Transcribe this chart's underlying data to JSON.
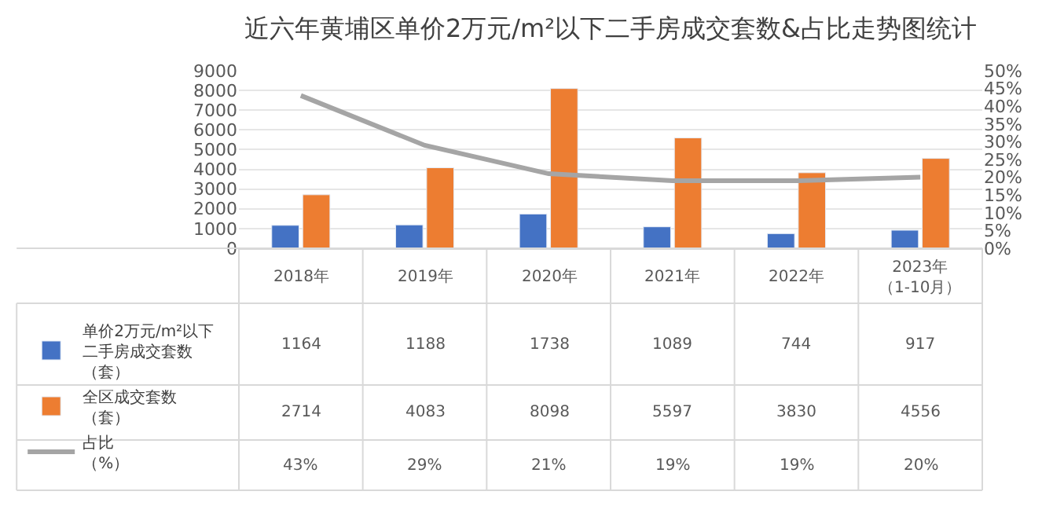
{
  "chart_data": {
    "type": "bar",
    "title": "近六年黄埔区单价2万元/m²以下二手房成交套数&占比走势图统计",
    "categories": [
      "2018年",
      "2019年",
      "2020年",
      "2021年",
      "2022年",
      "2023年（1-10月）"
    ],
    "series": [
      {
        "name": "单价2万元/m²以下二手房成交套数（套）",
        "color": "#4472c4",
        "values": [
          1164,
          1188,
          1738,
          1089,
          744,
          917
        ]
      },
      {
        "name": "全区成交套数（套）",
        "color": "#ed7d31",
        "values": [
          2714,
          4083,
          8098,
          5597,
          3830,
          4556
        ]
      },
      {
        "name": "占比（%）",
        "type": "line",
        "axis": "y2",
        "color": "#a5a5a5",
        "values": [
          43,
          29,
          21,
          19,
          19,
          20
        ]
      }
    ],
    "ylim": [
      0,
      9000
    ],
    "yticks": [
      0,
      1000,
      2000,
      3000,
      4000,
      5000,
      6000,
      7000,
      8000,
      9000
    ],
    "y2lim": [
      0,
      50
    ],
    "y2ticks": [
      {
        "value": 0,
        "label": "0%"
      },
      {
        "value": 5,
        "label": "5%"
      },
      {
        "value": 10,
        "label": "10%"
      },
      {
        "value": 15,
        "label": "15%"
      },
      {
        "value": 20,
        "label": "20%"
      },
      {
        "value": 25,
        "label": "25%"
      },
      {
        "value": 30,
        "label": "30%"
      },
      {
        "value": 35,
        "label": "35%"
      },
      {
        "value": 40,
        "label": "40%"
      },
      {
        "value": 45,
        "label": "45%"
      },
      {
        "value": 50,
        "label": "50%"
      }
    ],
    "value_labels": [
      [
        "1164",
        "1188",
        "1738",
        "1089",
        "744",
        "917"
      ],
      [
        "2714",
        "4083",
        "8098",
        "5597",
        "3830",
        "4556"
      ],
      [
        "43%",
        "29%",
        "21%",
        "19%",
        "19%",
        "20%"
      ]
    ],
    "data_labels": false,
    "grid": "y",
    "legend": "bottom",
    "marker": "none",
    "line_style": "solid"
  }
}
